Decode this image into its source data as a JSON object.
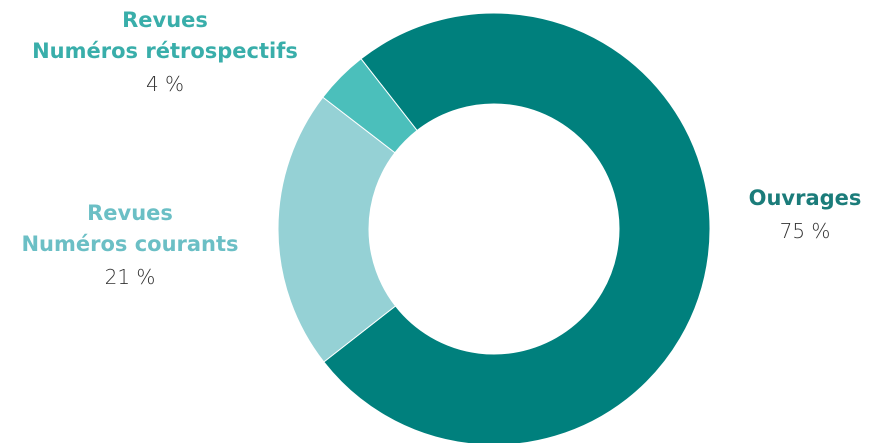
{
  "chart_data": {
    "type": "pie",
    "donut": true,
    "slices": [
      {
        "label_lines": [
          "Ouvrages"
        ],
        "value": 75,
        "value_label": "75 %",
        "color": "#00807d",
        "label_color": "#1b7c7a"
      },
      {
        "label_lines": [
          "Revues",
          "Numéros courants"
        ],
        "value": 21,
        "value_label": "21 %",
        "color": "#95d1d5",
        "label_color": "#6bbfc5"
      },
      {
        "label_lines": [
          "Revues",
          "Numéros rétrospectifs"
        ],
        "value": 4,
        "value_label": "4 %",
        "color": "#4bbfbb",
        "label_color": "#39aeaa"
      }
    ]
  }
}
